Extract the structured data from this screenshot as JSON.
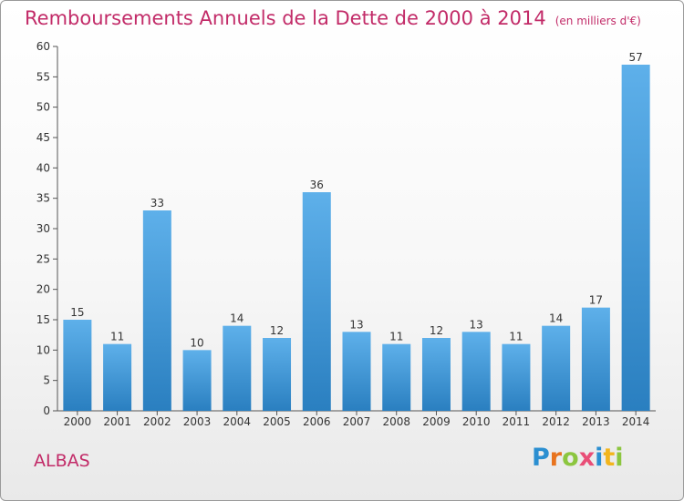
{
  "title": "Remboursements Annuels de la Dette de 2000 à 2014",
  "subtitle": "(en milliers d'€)",
  "place": "ALBAS",
  "logo": {
    "text": "Proxiti",
    "letters": [
      "P",
      "r",
      "o",
      "x",
      "i",
      "t",
      "i"
    ],
    "colors": [
      "#2b8fd1",
      "#e8731e",
      "#8cc63f",
      "#e94e77",
      "#2b8fd1",
      "#f2b51d",
      "#8cc63f"
    ]
  },
  "colors": {
    "accent": "#c22b68",
    "bar_top": "#5eb0ea",
    "bar_bottom": "#2a7fc0",
    "axis": "#555555"
  },
  "chart_data": {
    "type": "bar",
    "title": "Remboursements Annuels de la Dette de 2000 à 2014",
    "subtitle": "(en milliers d'€)",
    "categories": [
      "2000",
      "2001",
      "2002",
      "2003",
      "2004",
      "2005",
      "2006",
      "2007",
      "2008",
      "2009",
      "2010",
      "2011",
      "2012",
      "2013",
      "2014"
    ],
    "values": [
      15,
      11,
      33,
      10,
      14,
      12,
      36,
      13,
      11,
      12,
      13,
      11,
      14,
      17,
      57
    ],
    "ylim": [
      0,
      60
    ],
    "yticks": [
      0,
      5,
      10,
      15,
      20,
      25,
      30,
      35,
      40,
      45,
      50,
      55,
      60
    ],
    "xlabel": "",
    "ylabel": "",
    "grid": false,
    "legend": "none"
  }
}
